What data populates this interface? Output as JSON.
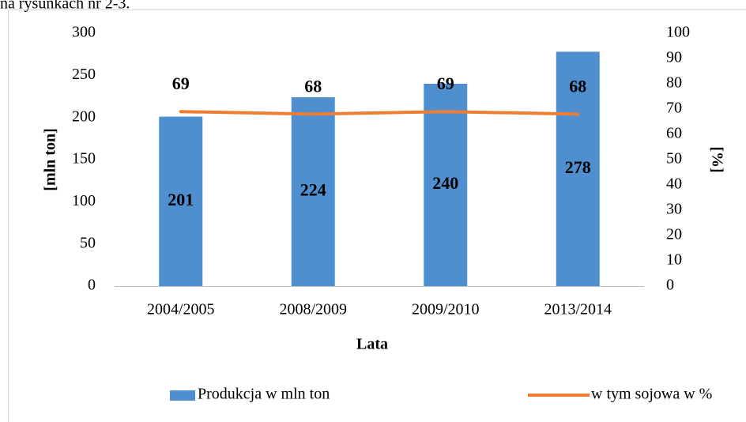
{
  "header_text": "na rysunkach nr 2-3.",
  "chart_data": {
    "type": "bar_line",
    "x_label": "Lata",
    "y_label": "[mln ton]",
    "y2_label": "[%]",
    "categories": [
      "2004/2005",
      "2008/2009",
      "2009/2010",
      "2013/2014"
    ],
    "series": [
      {
        "name": "Produkcja w mln ton",
        "type": "bar",
        "color": "#4f8fd0",
        "values": [
          201,
          224,
          240,
          278
        ]
      },
      {
        "name": "w tym sojowa w %",
        "type": "line",
        "axis": "y2",
        "color": "#ed7d31",
        "values": [
          69,
          68,
          69,
          68
        ]
      }
    ],
    "ylim": [
      0,
      300
    ],
    "yticks": [
      0,
      50,
      100,
      150,
      200,
      250,
      300
    ],
    "y2lim": [
      0,
      100
    ],
    "y2ticks": [
      0,
      10,
      20,
      30,
      40,
      50,
      60,
      70,
      80,
      90,
      100
    ],
    "legend": "bottom",
    "grid": false
  }
}
